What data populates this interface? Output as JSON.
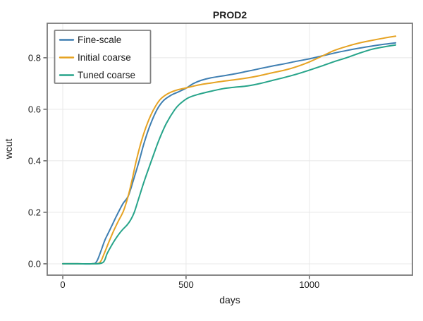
{
  "figure": {
    "title": "PROD2",
    "xlabel": "days",
    "ylabel": "wcut"
  },
  "chart_data": {
    "type": "line",
    "title": "PROD2",
    "xlabel": "days",
    "ylabel": "wcut",
    "xlim": [
      -63,
      1418
    ],
    "ylim": [
      -0.044,
      0.934
    ],
    "xticks": [
      0,
      500,
      1000
    ],
    "xtick_labels": [
      "0",
      "500",
      "1000"
    ],
    "yticks": [
      0.0,
      0.2,
      0.4,
      0.6,
      0.8
    ],
    "ytick_labels": [
      "0.0",
      "0.2",
      "0.4",
      "0.6",
      "0.8"
    ],
    "grid": true,
    "legend": {
      "position": "top-left",
      "entries": [
        "Fine-scale",
        "Initial coarse",
        "Tuned coarse"
      ]
    },
    "series": [
      {
        "name": "Fine-scale",
        "color": "#3f7fb2",
        "points": [
          [
            0,
            0
          ],
          [
            60,
            0
          ],
          [
            120,
            0
          ],
          [
            138,
            0.01
          ],
          [
            155,
            0.05
          ],
          [
            170,
            0.09
          ],
          [
            185,
            0.12
          ],
          [
            200,
            0.15
          ],
          [
            215,
            0.18
          ],
          [
            228,
            0.205
          ],
          [
            245,
            0.235
          ],
          [
            265,
            0.262
          ],
          [
            285,
            0.32
          ],
          [
            310,
            0.4
          ],
          [
            330,
            0.47
          ],
          [
            355,
            0.54
          ],
          [
            383,
            0.6
          ],
          [
            410,
            0.635
          ],
          [
            440,
            0.655
          ],
          [
            470,
            0.668
          ],
          [
            500,
            0.682
          ],
          [
            530,
            0.7
          ],
          [
            560,
            0.712
          ],
          [
            600,
            0.722
          ],
          [
            650,
            0.73
          ],
          [
            700,
            0.738
          ],
          [
            750,
            0.748
          ],
          [
            800,
            0.758
          ],
          [
            850,
            0.768
          ],
          [
            900,
            0.777
          ],
          [
            950,
            0.787
          ],
          [
            1000,
            0.796
          ],
          [
            1055,
            0.808
          ],
          [
            1100,
            0.818
          ],
          [
            1150,
            0.828
          ],
          [
            1200,
            0.837
          ],
          [
            1250,
            0.845
          ],
          [
            1300,
            0.852
          ],
          [
            1350,
            0.858
          ]
        ]
      },
      {
        "name": "Initial coarse",
        "color": "#e6a323",
        "points": [
          [
            0,
            0
          ],
          [
            60,
            0
          ],
          [
            120,
            0
          ],
          [
            150,
            0.005
          ],
          [
            168,
            0.04
          ],
          [
            185,
            0.08
          ],
          [
            205,
            0.125
          ],
          [
            225,
            0.165
          ],
          [
            246,
            0.205
          ],
          [
            265,
            0.262
          ],
          [
            282,
            0.33
          ],
          [
            298,
            0.4
          ],
          [
            320,
            0.48
          ],
          [
            345,
            0.55
          ],
          [
            369,
            0.6
          ],
          [
            395,
            0.638
          ],
          [
            425,
            0.66
          ],
          [
            460,
            0.674
          ],
          [
            500,
            0.683
          ],
          [
            530,
            0.69
          ],
          [
            560,
            0.696
          ],
          [
            600,
            0.702
          ],
          [
            650,
            0.709
          ],
          [
            700,
            0.715
          ],
          [
            750,
            0.722
          ],
          [
            800,
            0.731
          ],
          [
            850,
            0.742
          ],
          [
            900,
            0.752
          ],
          [
            950,
            0.766
          ],
          [
            1000,
            0.784
          ],
          [
            1055,
            0.808
          ],
          [
            1100,
            0.828
          ],
          [
            1150,
            0.844
          ],
          [
            1200,
            0.857
          ],
          [
            1250,
            0.867
          ],
          [
            1300,
            0.876
          ],
          [
            1350,
            0.884
          ]
        ]
      },
      {
        "name": "Tuned coarse",
        "color": "#27a48a",
        "points": [
          [
            0,
            0
          ],
          [
            60,
            0
          ],
          [
            120,
            0
          ],
          [
            163,
            0.005
          ],
          [
            180,
            0.04
          ],
          [
            200,
            0.075
          ],
          [
            220,
            0.105
          ],
          [
            240,
            0.13
          ],
          [
            260,
            0.15
          ],
          [
            275,
            0.17
          ],
          [
            290,
            0.2
          ],
          [
            310,
            0.26
          ],
          [
            330,
            0.32
          ],
          [
            350,
            0.375
          ],
          [
            365,
            0.415
          ],
          [
            390,
            0.48
          ],
          [
            420,
            0.545
          ],
          [
            455,
            0.6
          ],
          [
            480,
            0.625
          ],
          [
            510,
            0.645
          ],
          [
            546,
            0.657
          ],
          [
            600,
            0.67
          ],
          [
            650,
            0.68
          ],
          [
            700,
            0.686
          ],
          [
            750,
            0.691
          ],
          [
            800,
            0.7
          ],
          [
            850,
            0.712
          ],
          [
            900,
            0.724
          ],
          [
            950,
            0.737
          ],
          [
            1000,
            0.752
          ],
          [
            1050,
            0.768
          ],
          [
            1100,
            0.785
          ],
          [
            1150,
            0.8
          ],
          [
            1200,
            0.817
          ],
          [
            1250,
            0.832
          ],
          [
            1300,
            0.842
          ],
          [
            1350,
            0.85
          ]
        ]
      }
    ]
  }
}
